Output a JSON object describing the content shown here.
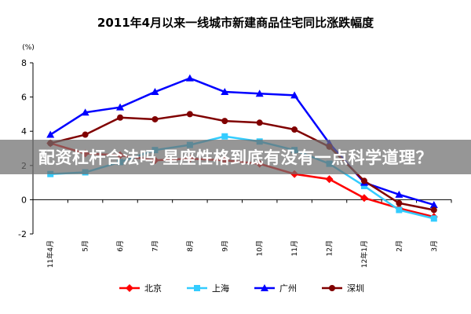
{
  "chart_data": {
    "type": "line",
    "title": "2011年4月以来一线城市新建商品住宅同比涨跌幅度",
    "ylabel": "(%)",
    "ylim": [
      -2,
      8
    ],
    "yticks": [
      -2,
      0,
      2,
      4,
      6,
      8
    ],
    "categories": [
      "11年4月",
      "5月",
      "6月",
      "7月",
      "8月",
      "9月",
      "10月",
      "11月",
      "12月",
      "12年1月",
      "2月",
      "3月"
    ],
    "legend_position": "bottom",
    "grid": false,
    "series": [
      {
        "name": "北京",
        "color": "#ff0000",
        "marker": "diamond",
        "values": [
          3.3,
          2.7,
          2.6,
          2.3,
          2.4,
          2.3,
          2.1,
          1.5,
          1.2,
          0.1,
          -0.5,
          -1.0
        ]
      },
      {
        "name": "上海",
        "color": "#33ccff",
        "marker": "square",
        "values": [
          1.5,
          1.6,
          2.2,
          2.9,
          3.2,
          3.7,
          3.4,
          2.9,
          2.1,
          0.8,
          -0.6,
          -1.1
        ]
      },
      {
        "name": "广州",
        "color": "#0000ff",
        "marker": "triangle",
        "values": [
          3.8,
          5.1,
          5.4,
          6.3,
          7.1,
          6.3,
          6.2,
          6.1,
          3.3,
          1.0,
          0.3,
          -0.3
        ]
      },
      {
        "name": "深圳",
        "color": "#800000",
        "marker": "circle",
        "values": [
          3.3,
          3.8,
          4.8,
          4.7,
          5.0,
          4.6,
          4.5,
          4.1,
          3.1,
          1.1,
          -0.2,
          -0.6
        ]
      }
    ]
  },
  "overlay": {
    "text": "配资杠杆合法吗 星座性格到底有没有一点科学道理？"
  }
}
